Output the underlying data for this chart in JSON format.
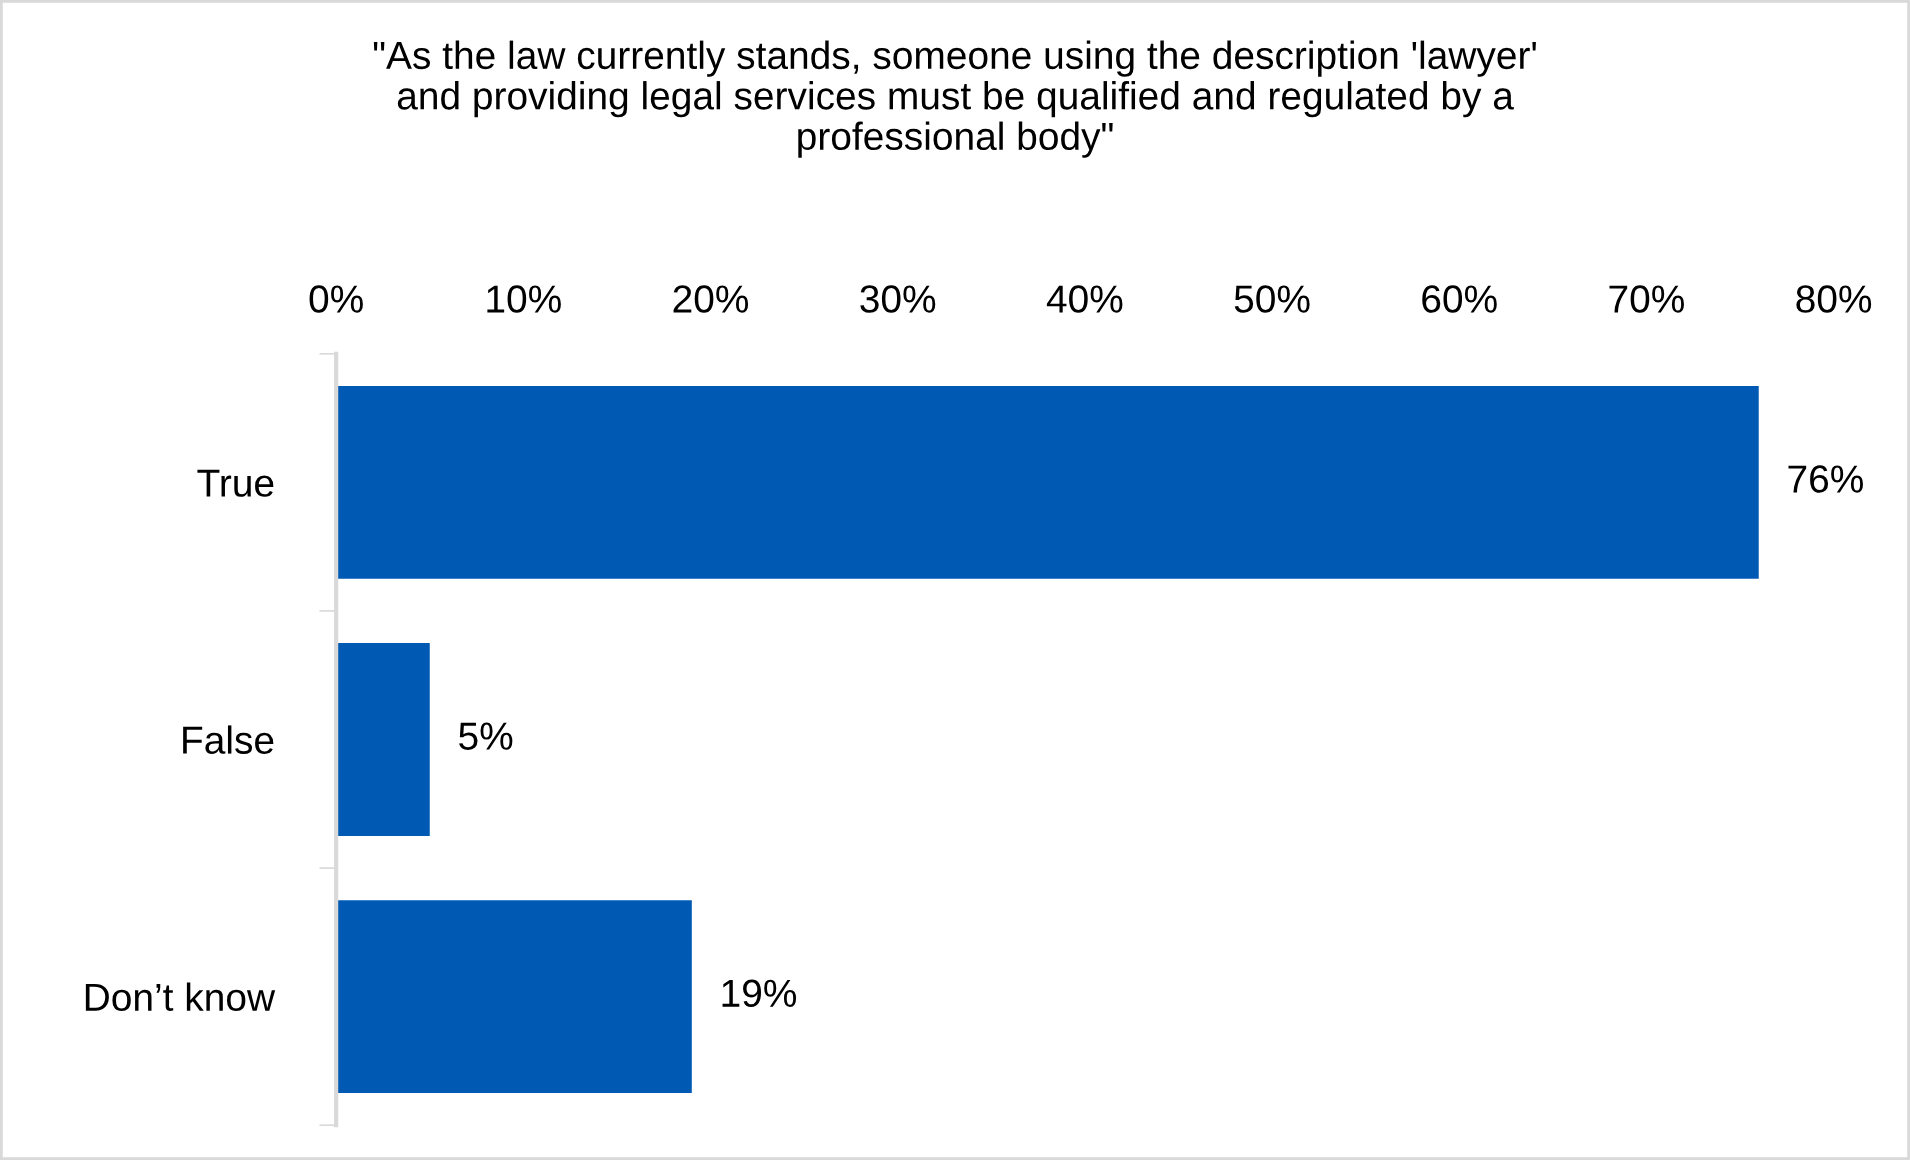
{
  "chart_data": {
    "type": "bar",
    "orientation": "horizontal",
    "title": "\"As the law currently stands, someone using the description 'lawyer'\nand providing legal services must be qualified and regulated by a\nprofessional body\"",
    "categories": [
      "True",
      "False",
      "Don’t know"
    ],
    "values": [
      76,
      5,
      19
    ],
    "value_labels": [
      "76%",
      "5%",
      "19%"
    ],
    "color": "#0059b3",
    "xlim": [
      0,
      80
    ],
    "xticks": [
      {
        "value": 0,
        "label": "0%"
      },
      {
        "value": 10,
        "label": "10%"
      },
      {
        "value": 20,
        "label": "20%"
      },
      {
        "value": 30,
        "label": "30%"
      },
      {
        "value": 40,
        "label": "40%"
      },
      {
        "value": 50,
        "label": "50%"
      },
      {
        "value": 60,
        "label": "60%"
      },
      {
        "value": 70,
        "label": "70%"
      },
      {
        "value": 80,
        "label": "80%"
      }
    ],
    "grid": false,
    "legend": false
  }
}
